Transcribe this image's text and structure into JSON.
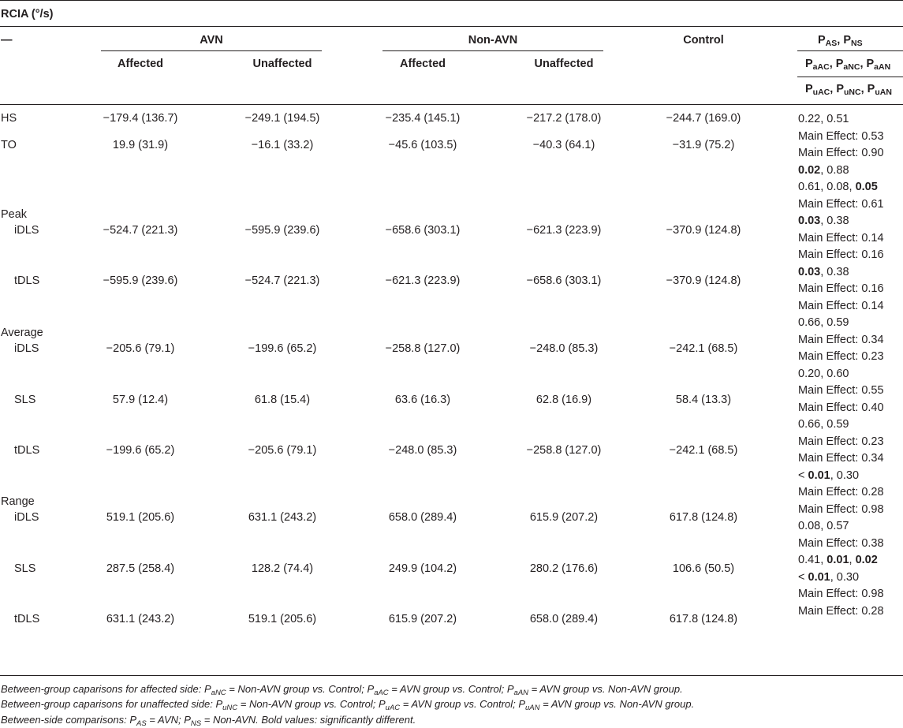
{
  "table": {
    "title": "RCIA (°/s)",
    "header": {
      "dash": "—",
      "avn": "AVN",
      "non_avn": "Non-AVN",
      "control": "Control",
      "affected": "Affected",
      "unaffected": "Unaffected",
      "p_row1": [
        [
          "P",
          "AS"
        ],
        [
          "P",
          "NS"
        ]
      ],
      "p_row2": [
        [
          "P",
          "aAC"
        ],
        [
          "P",
          "aNC"
        ],
        [
          "P",
          "aAN"
        ]
      ],
      "p_row3": [
        [
          "P",
          "uAC"
        ],
        [
          "P",
          "uNC"
        ],
        [
          "P",
          "uAN"
        ]
      ]
    },
    "rows": [
      {
        "label": "HS",
        "values": [
          "−179.4 (136.7)",
          "−249.1 (194.5)",
          "−235.4 (145.1)",
          "−217.2 (178.0)",
          "−244.7 (169.0)"
        ]
      },
      {
        "label": "TO",
        "values": [
          "19.9 (31.9)",
          "−16.1 (33.2)",
          "−45.6 (103.5)",
          "−40.3 (64.1)",
          "−31.9 (75.2)"
        ]
      },
      {
        "label": "Peak",
        "values": []
      },
      {
        "label": "iDLS",
        "values": [
          "−524.7 (221.3)",
          "−595.9 (239.6)",
          "−658.6 (303.1)",
          "−621.3 (223.9)",
          "−370.9 (124.8)"
        ]
      },
      {
        "label": "tDLS",
        "values": [
          "−595.9 (239.6)",
          "−524.7 (221.3)",
          "−621.3 (223.9)",
          "−658.6 (303.1)",
          "−370.9 (124.8)"
        ]
      },
      {
        "label": "Average",
        "values": []
      },
      {
        "label": "iDLS",
        "values": [
          "−205.6 (79.1)",
          "−199.6 (65.2)",
          "−258.8 (127.0)",
          "−248.0 (85.3)",
          "−242.1 (68.5)"
        ]
      },
      {
        "label": "SLS",
        "values": [
          "57.9 (12.4)",
          "61.8 (15.4)",
          "63.6 (16.3)",
          "62.8 (16.9)",
          "58.4 (13.3)"
        ]
      },
      {
        "label": "tDLS",
        "values": [
          "−199.6 (65.2)",
          "−205.6 (79.1)",
          "−248.0 (85.3)",
          "−258.8 (127.0)",
          "−242.1 (68.5)"
        ]
      },
      {
        "label": "Range",
        "values": []
      },
      {
        "label": "iDLS",
        "values": [
          "519.1 (205.6)",
          "631.1 (243.2)",
          "658.0 (289.4)",
          "615.9 (207.2)",
          "617.8 (124.8)"
        ]
      },
      {
        "label": "SLS",
        "values": [
          "287.5 (258.4)",
          "128.2 (74.4)",
          "249.9 (104.2)",
          "280.2 (176.6)",
          "106.6 (50.5)"
        ]
      },
      {
        "label": "tDLS",
        "values": [
          "631.1 (243.2)",
          "519.1 (205.6)",
          "615.9 (207.2)",
          "658.0 (289.4)",
          "617.8 (124.8)"
        ]
      }
    ],
    "p_lines": [
      [
        {
          "t": "0.22, 0.51",
          "b": false
        }
      ],
      [
        {
          "t": "Main Effect: 0.53",
          "b": false
        }
      ],
      [
        {
          "t": "Main Effect: 0.90",
          "b": false
        }
      ],
      [
        {
          "t": "0.02",
          "b": true
        },
        {
          "t": ", 0.88",
          "b": false
        }
      ],
      [
        {
          "t": "0.61, 0.08, ",
          "b": false
        },
        {
          "t": "0.05",
          "b": true
        }
      ],
      [
        {
          "t": "Main Effect: 0.61",
          "b": false
        }
      ],
      [
        {
          "t": "0.03",
          "b": true
        },
        {
          "t": ", 0.38",
          "b": false
        }
      ],
      [
        {
          "t": "Main Effect: 0.14",
          "b": false
        }
      ],
      [
        {
          "t": "Main Effect: 0.16",
          "b": false
        }
      ],
      [
        {
          "t": "0.03",
          "b": true
        },
        {
          "t": ", 0.38",
          "b": false
        }
      ],
      [
        {
          "t": "Main Effect: 0.16",
          "b": false
        }
      ],
      [
        {
          "t": "Main Effect: 0.14",
          "b": false
        }
      ],
      [
        {
          "t": "0.66, 0.59",
          "b": false
        }
      ],
      [
        {
          "t": "Main Effect: 0.34",
          "b": false
        }
      ],
      [
        {
          "t": "Main Effect: 0.23",
          "b": false
        }
      ],
      [
        {
          "t": "0.20, 0.60",
          "b": false
        }
      ],
      [
        {
          "t": "Main Effect: 0.55",
          "b": false
        }
      ],
      [
        {
          "t": "Main Effect: 0.40",
          "b": false
        }
      ],
      [
        {
          "t": "0.66, 0.59",
          "b": false
        }
      ],
      [
        {
          "t": "Main Effect: 0.23",
          "b": false
        }
      ],
      [
        {
          "t": "Main Effect: 0.34",
          "b": false
        }
      ],
      [
        {
          "t": "< ",
          "b": false
        },
        {
          "t": "0.01",
          "b": true
        },
        {
          "t": ", 0.30",
          "b": false
        }
      ],
      [
        {
          "t": "Main Effect: 0.28",
          "b": false
        }
      ],
      [
        {
          "t": "Main Effect: 0.98",
          "b": false
        }
      ],
      [
        {
          "t": "0.08, 0.57",
          "b": false
        }
      ],
      [
        {
          "t": "Main Effect: 0.38",
          "b": false
        }
      ],
      [
        {
          "t": "0.41, ",
          "b": false
        },
        {
          "t": "0.01",
          "b": true
        },
        {
          "t": ", ",
          "b": false
        },
        {
          "t": "0.02",
          "b": true
        }
      ],
      [
        {
          "t": "< ",
          "b": false
        },
        {
          "t": "0.01",
          "b": true
        },
        {
          "t": ", 0.30",
          "b": false
        }
      ],
      [
        {
          "t": "Main Effect: 0.98",
          "b": false
        }
      ],
      [
        {
          "t": "Main Effect: 0.28",
          "b": false
        }
      ]
    ],
    "footnotes": [
      [
        [
          "Between-group caparisons for affected side: ",
          ""
        ],
        [
          "P",
          "aNC"
        ],
        [
          " = Non-AVN group vs. Control; ",
          ""
        ],
        [
          "P",
          "aAC"
        ],
        [
          " = AVN group vs. Control; ",
          ""
        ],
        [
          "P",
          "aAN"
        ],
        [
          " = AVN group vs. Non-AVN group.",
          ""
        ]
      ],
      [
        [
          "Between-group caparisons for unaffected side: ",
          ""
        ],
        [
          "P",
          "uNC"
        ],
        [
          " = Non-AVN group vs. Control; ",
          ""
        ],
        [
          "P",
          "uAC"
        ],
        [
          " = AVN group vs. Control; ",
          ""
        ],
        [
          "P",
          "uAN"
        ],
        [
          " = AVN group vs. Non-AVN group.",
          ""
        ]
      ],
      [
        [
          "Between-side comparisons: ",
          ""
        ],
        [
          "P",
          "AS"
        ],
        [
          " = AVN; ",
          ""
        ],
        [
          "P",
          "NS"
        ],
        [
          " = Non-AVN. Bold values: significantly different.",
          ""
        ]
      ]
    ]
  }
}
